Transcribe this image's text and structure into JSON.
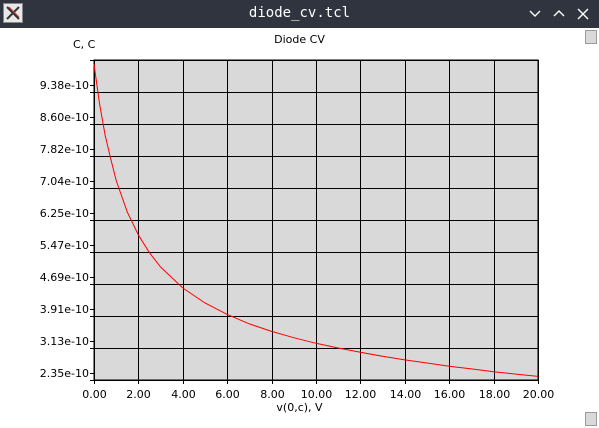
{
  "window": {
    "title": "diode_cv.tcl",
    "icon": "x-app-icon",
    "buttons": [
      "minimize-chevron",
      "maximize-chevron",
      "close-x"
    ]
  },
  "colors": {
    "titlebar": "#2f343f",
    "plot_background": "#d9d9d9",
    "grid": "#000000",
    "curve": "#ff0000"
  },
  "chart_data": {
    "type": "line",
    "title": "Diode CV",
    "ylabel": "C, C",
    "xlabel": "v(0,c), V",
    "xlim": [
      0,
      20
    ],
    "ylim": [
      2.2e-10,
      1.03e-09
    ],
    "grid": true,
    "x_ticks": [
      "0.00",
      "2.00",
      "4.00",
      "6.00",
      "8.00",
      "10.00",
      "12.00",
      "14.00",
      "16.00",
      "18.00",
      "20.00"
    ],
    "y_ticks": [
      "9.38e-10",
      "8.60e-10",
      "7.82e-10",
      "7.04e-10",
      "6.25e-10",
      "5.47e-10",
      "4.69e-10",
      "3.91e-10",
      "3.13e-10",
      "2.35e-10"
    ],
    "series": [
      {
        "color": "#ff0000",
        "x": [
          0,
          0.25,
          0.5,
          0.75,
          1,
          1.5,
          2,
          2.5,
          3,
          4,
          5,
          6,
          7,
          8,
          9,
          10,
          11,
          12,
          13,
          14,
          15,
          16,
          17,
          18,
          19,
          20
        ],
        "y": [
          1.02e-09,
          9.2e-10,
          8.4e-10,
          7.8e-10,
          7.25e-10,
          6.45e-10,
          5.87e-10,
          5.42e-10,
          5.06e-10,
          4.53e-10,
          4.15e-10,
          3.86e-10,
          3.62e-10,
          3.43e-10,
          3.27e-10,
          3.13e-10,
          3.01e-10,
          2.9e-10,
          2.8e-10,
          2.71e-10,
          2.63e-10,
          2.55e-10,
          2.48e-10,
          2.41e-10,
          2.35e-10,
          2.29e-10
        ]
      }
    ]
  }
}
